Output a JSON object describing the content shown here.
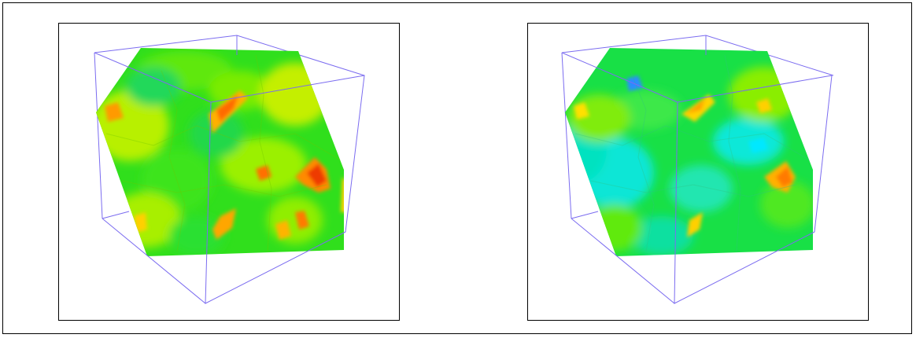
{
  "figure": {
    "panels": [
      {
        "id": "left",
        "description_colormap": [
          "#00dd22",
          "#33ee11",
          "#aaf000",
          "#ffee00",
          "#ff9900",
          "#ee3300"
        ],
        "dominant_color": "#33e01a",
        "hotspot_color": "#ff6a00",
        "cold_color": "#00e0d0"
      },
      {
        "id": "right",
        "description_colormap": [
          "#00ccff",
          "#00e8c8",
          "#00e64a",
          "#7df000",
          "#ffe000",
          "#ff7a00"
        ],
        "dominant_color": "#18e04a",
        "hotspot_color": "#ffa000",
        "cold_color": "#10e8e8"
      }
    ],
    "cube_edge_color": "#7b6cf0",
    "frame_color": "#000000"
  }
}
